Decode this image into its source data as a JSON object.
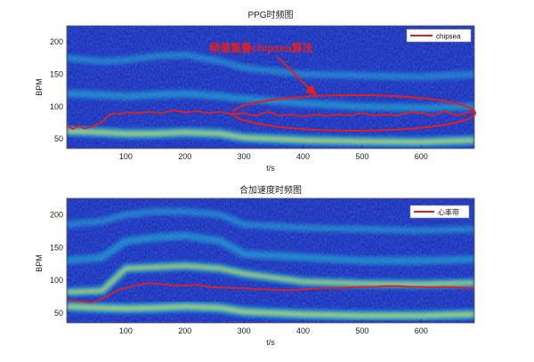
{
  "colors": {
    "spectrogram_low": "#1b2fb8",
    "spectrogram_mid": "#22c7d8",
    "spectrogram_high": "#f0e24a",
    "trace": "#e02020",
    "annotation": "#e02020",
    "axis": "#333333"
  },
  "chart_data": [
    {
      "type": "heatmap",
      "title": "PPG时频图",
      "xlabel": "t/s",
      "ylabel": "BPM",
      "xlim": [
        0,
        690
      ],
      "ylim": [
        35,
        225
      ],
      "xticks": [
        100,
        200,
        300,
        400,
        500,
        600
      ],
      "yticks": [
        50,
        100,
        150,
        200
      ],
      "legend": {
        "position": "top-right",
        "label": "chipsea",
        "color": "#e02020"
      },
      "annotation": {
        "text": "频谱重叠chipsea算法",
        "target": [
          430,
          92
        ]
      },
      "series": [
        {
          "name": "chipsea",
          "x": [
            0,
            10,
            20,
            30,
            40,
            50,
            60,
            70,
            80,
            90,
            100,
            120,
            140,
            160,
            180,
            200,
            220,
            240,
            260,
            280,
            300,
            320,
            340,
            360,
            380,
            400,
            420,
            440,
            460,
            480,
            500,
            520,
            540,
            560,
            580,
            600,
            620,
            640,
            660,
            680,
            690
          ],
          "y": [
            72,
            65,
            70,
            66,
            68,
            72,
            76,
            86,
            90,
            88,
            91,
            90,
            92,
            90,
            94,
            91,
            93,
            90,
            92,
            88,
            90,
            86,
            92,
            86,
            88,
            84,
            88,
            86,
            88,
            86,
            90,
            86,
            88,
            86,
            91,
            90,
            86,
            93,
            86,
            91,
            92
          ]
        }
      ],
      "bands": [
        {
          "x": [
            0,
            60,
            100,
            150,
            200,
            260,
            300,
            400,
            500,
            600,
            690
          ],
          "y": [
            62,
            60,
            58,
            58,
            60,
            58,
            52,
            48,
            46,
            45,
            48
          ],
          "strength": 0.85
        },
        {
          "x": [
            0,
            60,
            100,
            150,
            200,
            260,
            300,
            400,
            500,
            600,
            690
          ],
          "y": [
            120,
            118,
            116,
            118,
            120,
            116,
            112,
            105,
            100,
            98,
            100
          ],
          "strength": 0.45
        },
        {
          "x": [
            0,
            60,
            100,
            150,
            200,
            260,
            300,
            400,
            500,
            600,
            690
          ],
          "y": [
            175,
            170,
            172,
            178,
            180,
            170,
            160,
            150,
            148,
            146,
            150
          ],
          "strength": 0.3
        }
      ]
    },
    {
      "type": "heatmap",
      "title": "合加速度时频图",
      "xlabel": "t/s",
      "ylabel": "BPM",
      "xlim": [
        0,
        690
      ],
      "ylim": [
        35,
        225
      ],
      "xticks": [
        100,
        200,
        300,
        400,
        500,
        600
      ],
      "yticks": [
        50,
        100,
        150,
        200
      ],
      "legend": {
        "position": "top-right",
        "label": "心率带",
        "color": "#e02020"
      },
      "series": [
        {
          "name": "心率带",
          "x": [
            0,
            10,
            20,
            30,
            40,
            50,
            60,
            70,
            80,
            90,
            100,
            120,
            140,
            160,
            180,
            200,
            220,
            240,
            260,
            280,
            300,
            320,
            340,
            360,
            380,
            400,
            420,
            440,
            460,
            480,
            500,
            520,
            540,
            560,
            580,
            600,
            620,
            640,
            660,
            680,
            690
          ],
          "y": [
            70,
            69,
            68,
            67,
            66,
            68,
            72,
            76,
            82,
            86,
            88,
            93,
            96,
            94,
            92,
            92,
            93,
            90,
            89,
            88,
            88,
            86,
            86,
            85,
            85,
            86,
            87,
            88,
            88,
            89,
            90,
            90,
            91,
            91,
            90,
            90,
            89,
            90,
            89,
            88,
            88
          ]
        }
      ],
      "bands": [
        {
          "x": [
            0,
            60,
            100,
            150,
            200,
            260,
            300,
            400,
            500,
            600,
            690
          ],
          "y": [
            60,
            58,
            57,
            58,
            60,
            58,
            52,
            48,
            46,
            46,
            48
          ],
          "strength": 0.9
        },
        {
          "x": [
            0,
            60,
            100,
            150,
            200,
            260,
            300,
            400,
            500,
            600,
            690
          ],
          "y": [
            82,
            84,
            118,
            120,
            122,
            118,
            110,
            98,
            95,
            94,
            96
          ],
          "strength": 0.7
        },
        {
          "x": [
            0,
            60,
            100,
            150,
            200,
            260,
            300,
            400,
            500,
            600,
            690
          ],
          "y": [
            130,
            135,
            160,
            165,
            168,
            160,
            140,
            135,
            130,
            130,
            132
          ],
          "strength": 0.45
        },
        {
          "x": [
            0,
            60,
            100,
            150,
            200,
            260,
            300,
            400,
            500,
            600,
            690
          ],
          "y": [
            185,
            190,
            200,
            205,
            205,
            200,
            185,
            180,
            178,
            176,
            178
          ],
          "strength": 0.3
        }
      ]
    }
  ]
}
